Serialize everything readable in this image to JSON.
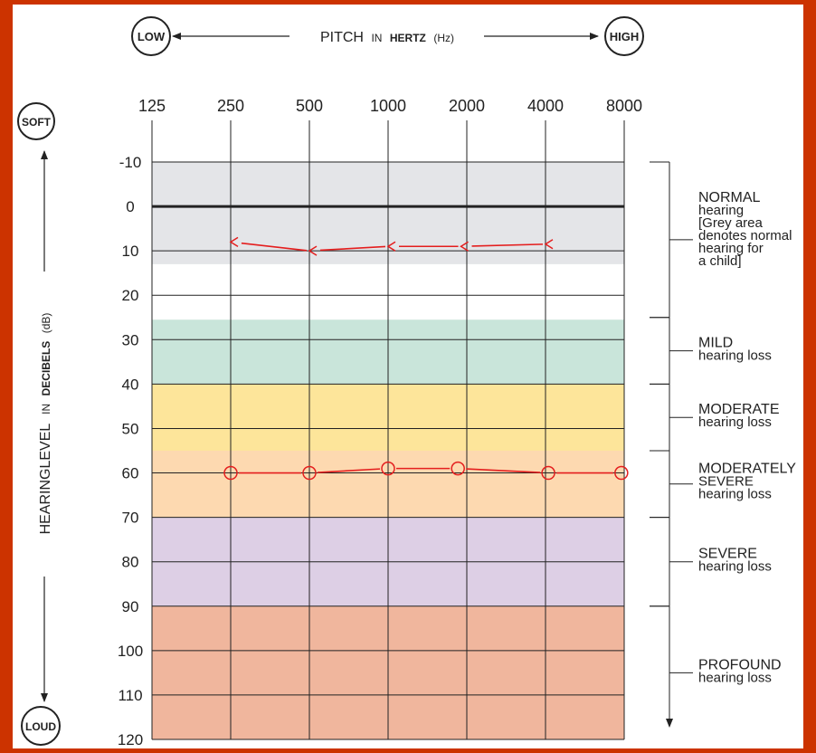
{
  "chart_data": {
    "type": "line",
    "x_axis": {
      "title_main": "PITCH",
      "title_in": "IN",
      "title_bold": "HERTZ",
      "title_unit": "(Hz)",
      "low_label": "LOW",
      "high_label": "HIGH",
      "ticks": [
        "125",
        "250",
        "500",
        "1000",
        "2000",
        "4000",
        "8000"
      ]
    },
    "y_axis": {
      "title_main": "HEARINGLEVEL",
      "title_in": "IN",
      "title_bold": "DECIBELS",
      "title_unit": "(dB)",
      "soft_label": "SOFT",
      "loud_label": "LOUD",
      "ticks": [
        "-10",
        "0",
        "10",
        "20",
        "30",
        "40",
        "50",
        "60",
        "70",
        "80",
        "90",
        "100",
        "110",
        "120"
      ],
      "ylim": [
        -10,
        120
      ],
      "inverted": true
    },
    "bands": [
      {
        "from": -10,
        "to": 13,
        "color": "#e4e5e8"
      },
      {
        "from": 25.5,
        "to": 40,
        "color": "#c9e5da"
      },
      {
        "from": 40,
        "to": 55,
        "color": "#fde59a"
      },
      {
        "from": 55,
        "to": 70,
        "color": "#fdd9b0"
      },
      {
        "from": 70,
        "to": 90,
        "color": "#ddcfe5"
      },
      {
        "from": 90,
        "to": 120,
        "color": "#f0b69d"
      }
    ],
    "series": [
      {
        "marker": "<",
        "color": "#e41e1e",
        "points": [
          {
            "x": 250,
            "y": 8
          },
          {
            "x": 500,
            "y": 10
          },
          {
            "x": 1000,
            "y": 9
          },
          {
            "x": 1900,
            "y": 9
          },
          {
            "x": 4000,
            "y": 8.5
          }
        ]
      },
      {
        "marker": "o",
        "color": "#e41e1e",
        "points": [
          {
            "x": 250,
            "y": 60
          },
          {
            "x": 500,
            "y": 60
          },
          {
            "x": 1000,
            "y": 59
          },
          {
            "x": 1850,
            "y": 59
          },
          {
            "x": 4100,
            "y": 60
          },
          {
            "x": 7800,
            "y": 60
          }
        ]
      }
    ],
    "categories": [
      {
        "from": -10,
        "to": 25,
        "title": "NORMAL",
        "lines": [
          "hearing",
          "[Grey area",
          "denotes normal",
          "hearing for",
          "a child]"
        ]
      },
      {
        "from": 25,
        "to": 40,
        "title": "MILD",
        "lines": [
          "hearing loss"
        ]
      },
      {
        "from": 40,
        "to": 55,
        "title": "MODERATE",
        "lines": [
          "hearing loss"
        ]
      },
      {
        "from": 55,
        "to": 70,
        "title": "MODERATELY",
        "lines": [
          "SEVERE",
          "hearing loss"
        ]
      },
      {
        "from": 70,
        "to": 90,
        "title": "SEVERE",
        "lines": [
          "hearing loss"
        ]
      },
      {
        "from": 90,
        "to": 120,
        "title": "PROFOUND",
        "lines": [
          "hearing loss"
        ]
      }
    ]
  }
}
